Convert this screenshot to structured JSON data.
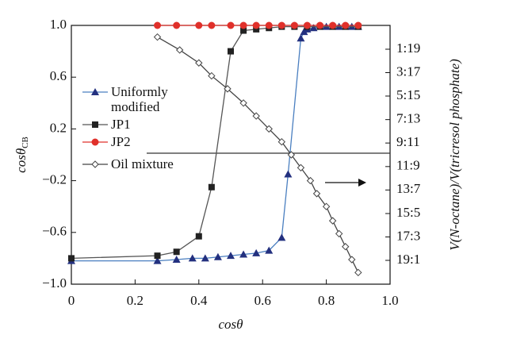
{
  "chart_data": {
    "type": "line",
    "xlabel": "cosθ",
    "ylabel": {
      "text": "cosθ",
      "sub": "CB"
    },
    "y2label": "V(N-octane)/V(tricresol phosphate)",
    "xlim": [
      0,
      1
    ],
    "xticks": [
      0,
      0.2,
      0.4,
      0.6,
      0.8,
      {
        "value": 1,
        "label": "1.0"
      }
    ],
    "ylim": [
      -1,
      1
    ],
    "yticks": [
      {
        "value": 1,
        "label": "1.0"
      },
      0.6,
      0.2,
      {
        "value": -0.2,
        "label": "−0.2"
      },
      {
        "value": -0.6,
        "label": "−0.6"
      },
      {
        "value": -1,
        "label": "−1.0"
      }
    ],
    "y2lim": [
      -1,
      1
    ],
    "y2ticks": [
      {
        "value": 0.816,
        "label": "1:19"
      },
      {
        "value": 0.635,
        "label": "3:17"
      },
      {
        "value": 0.454,
        "label": "5:15"
      },
      {
        "value": 0.272,
        "label": "7:13"
      },
      {
        "value": 0.091,
        "label": "9:11"
      },
      {
        "value": -0.091,
        "label": "11:9"
      },
      {
        "value": -0.272,
        "label": "13:7"
      },
      {
        "value": -0.454,
        "label": "15:5"
      },
      {
        "value": -0.635,
        "label": "17:3"
      },
      {
        "value": -0.816,
        "label": "19:1"
      }
    ],
    "series": [
      {
        "name": "Uniformly modified",
        "color": "#4a7fc0",
        "marker_color": "#23307f",
        "marker": "triangle",
        "x": [
          0,
          0.27,
          0.33,
          0.38,
          0.42,
          0.46,
          0.5,
          0.54,
          0.58,
          0.62,
          0.66,
          0.68,
          0.72,
          0.73,
          0.74,
          0.76,
          0.8,
          0.84,
          0.88,
          0.9
        ],
        "values": [
          -0.82,
          -0.82,
          -0.81,
          -0.8,
          -0.8,
          -0.79,
          -0.78,
          -0.77,
          -0.76,
          -0.74,
          -0.64,
          -0.15,
          0.9,
          0.95,
          0.97,
          0.98,
          0.99,
          0.99,
          0.99,
          0.99
        ]
      },
      {
        "name": "JP1",
        "color": "#555555",
        "marker_color": "#222222",
        "marker": "square",
        "x": [
          0,
          0.27,
          0.33,
          0.4,
          0.44,
          0.5,
          0.54,
          0.58,
          0.62,
          0.66,
          0.7,
          0.74,
          0.78,
          0.82,
          0.86,
          0.9
        ],
        "values": [
          -0.8,
          -0.78,
          -0.75,
          -0.63,
          -0.25,
          0.8,
          0.96,
          0.97,
          0.98,
          0.99,
          0.99,
          0.99,
          0.99,
          0.99,
          0.99,
          0.99
        ]
      },
      {
        "name": "JP2",
        "color": "#e0302a",
        "marker_color": "#e0302a",
        "marker": "circle",
        "x": [
          0.27,
          0.33,
          0.4,
          0.44,
          0.5,
          0.54,
          0.58,
          0.62,
          0.66,
          0.7,
          0.74,
          0.78,
          0.82,
          0.86,
          0.9
        ],
        "values": [
          1,
          1,
          1,
          1,
          1,
          1,
          1,
          1,
          1,
          1,
          1,
          1,
          1,
          1,
          1
        ]
      },
      {
        "name": "Oil mixture",
        "color": "#444444",
        "marker_color": "#444444",
        "marker": "diamond",
        "axis": "y2",
        "x": [
          0.27,
          0.34,
          0.4,
          0.44,
          0.49,
          0.54,
          0.58,
          0.62,
          0.66,
          0.69,
          0.72,
          0.75,
          0.77,
          0.8,
          0.82,
          0.84,
          0.86,
          0.88,
          0.9
        ],
        "values": [
          0.91,
          0.81,
          0.71,
          0.61,
          0.51,
          0.4,
          0.3,
          0.2,
          0.1,
          0,
          -0.1,
          -0.2,
          -0.3,
          -0.4,
          -0.51,
          -0.61,
          -0.71,
          -0.81,
          -0.91
        ]
      }
    ]
  }
}
